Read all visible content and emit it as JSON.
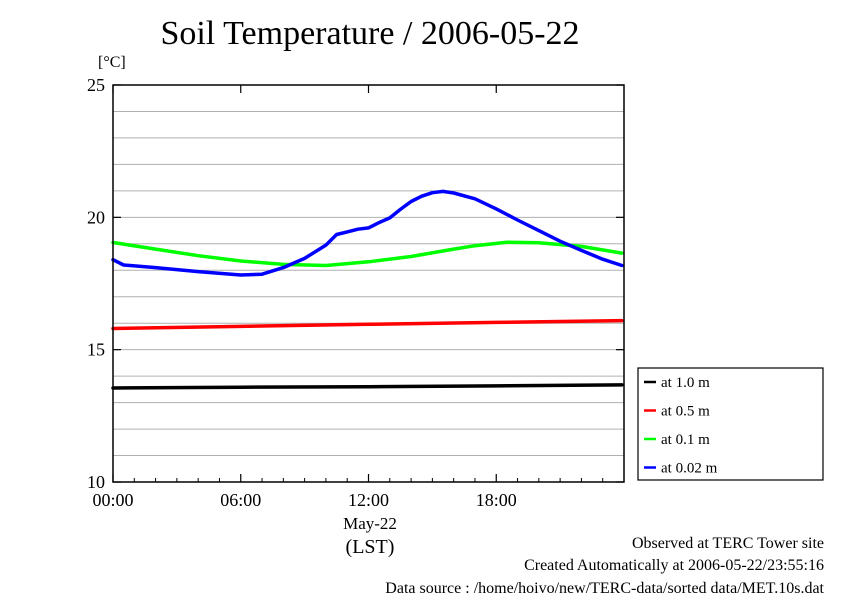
{
  "chart_data": {
    "type": "line",
    "title": "Soil Temperature / 2006-05-22",
    "ylabel": "[°C]",
    "xlabel": "May-22",
    "xlabel2": "(LST)",
    "xlim": [
      0,
      24
    ],
    "ylim": [
      10,
      25
    ],
    "x_ticks": [
      {
        "value": 0,
        "label": "00:00"
      },
      {
        "value": 6,
        "label": "06:00"
      },
      {
        "value": 12,
        "label": "12:00"
      },
      {
        "value": 18,
        "label": "18:00"
      }
    ],
    "y_ticks": [
      {
        "value": 10,
        "label": "10"
      },
      {
        "value": 15,
        "label": "15"
      },
      {
        "value": 20,
        "label": "20"
      },
      {
        "value": 25,
        "label": "25"
      }
    ],
    "y_grid_step": 1,
    "legend_position": "right",
    "series": [
      {
        "name": "at 1.0 m",
        "color": "#000000",
        "x": [
          0,
          6,
          12,
          18,
          23.9
        ],
        "y": [
          13.55,
          13.58,
          13.6,
          13.63,
          13.67
        ]
      },
      {
        "name": "at 0.5 m",
        "color": "#ff0000",
        "x": [
          0,
          6,
          12,
          18,
          23.9
        ],
        "y": [
          15.8,
          15.88,
          15.96,
          16.03,
          16.1
        ]
      },
      {
        "name": "at 0.1 m",
        "color": "#00ff00",
        "x": [
          0,
          2,
          4,
          6,
          8,
          10,
          12,
          14,
          16,
          17,
          18.5,
          20,
          22,
          23.9
        ],
        "y": [
          19.05,
          18.8,
          18.55,
          18.35,
          18.22,
          18.18,
          18.32,
          18.52,
          18.8,
          18.93,
          19.06,
          19.04,
          18.9,
          18.65
        ]
      },
      {
        "name": "at 0.02 m",
        "color": "#0000ff",
        "x": [
          0,
          0.5,
          2,
          4,
          6,
          7,
          8,
          9,
          10,
          10.5,
          11,
          11.5,
          12,
          12.5,
          13,
          13.5,
          14,
          14.5,
          15,
          15.5,
          16,
          17,
          18,
          19,
          20,
          21,
          22,
          23,
          23.9
        ],
        "y": [
          18.4,
          18.2,
          18.1,
          17.95,
          17.82,
          17.85,
          18.1,
          18.45,
          18.95,
          19.35,
          19.45,
          19.55,
          19.6,
          19.8,
          19.98,
          20.3,
          20.6,
          20.8,
          20.93,
          20.98,
          20.92,
          20.7,
          20.32,
          19.9,
          19.5,
          19.1,
          18.75,
          18.42,
          18.18
        ]
      }
    ]
  },
  "footer": {
    "site": "Observed at TERC Tower site",
    "created": "Created Automatically at 2006-05-22/23:55:16",
    "source": "Data source : /home/hoivo/new/TERC-data/sorted  data/MET.10s.dat"
  }
}
